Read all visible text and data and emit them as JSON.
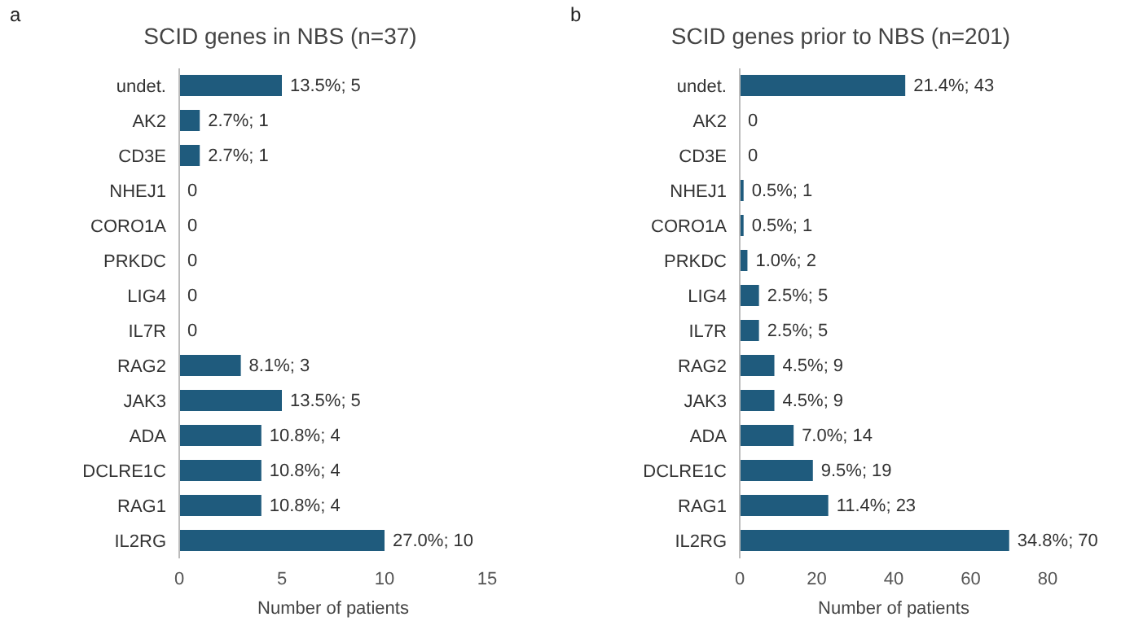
{
  "chart_data": [
    {
      "type": "bar",
      "orientation": "horizontal",
      "title": "SCID genes in NBS (n=37)",
      "annotations": [
        "a"
      ],
      "xlabel": "Number of patients",
      "categories": [
        "undet.",
        "AK2",
        "CD3E",
        "NHEJ1",
        "CORO1A",
        "PRKDC",
        "LIG4",
        "IL7R",
        "RAG2",
        "JAK3",
        "ADA",
        "DCLRE1C",
        "RAG1",
        "IL2RG"
      ],
      "values": [
        5,
        1,
        1,
        0,
        0,
        0,
        0,
        0,
        3,
        5,
        4,
        4,
        4,
        10
      ],
      "value_labels": [
        "13.5%; 5",
        "2.7%; 1",
        "2.7%; 1",
        "0",
        "0",
        "0",
        "0",
        "0",
        "8.1%; 3",
        "13.5%; 5",
        "10.8%; 4",
        "10.8%; 4",
        "10.8%; 4",
        "27.0%; 10"
      ],
      "color": "#1f5b7d",
      "xlim": [
        0,
        15
      ],
      "xticks": [
        0,
        5,
        10,
        15
      ]
    },
    {
      "type": "bar",
      "orientation": "horizontal",
      "title": "SCID genes prior to NBS (n=201)",
      "annotations": [
        "b"
      ],
      "xlabel": "Number of patients",
      "categories": [
        "undet.",
        "AK2",
        "CD3E",
        "NHEJ1",
        "CORO1A",
        "PRKDC",
        "LIG4",
        "IL7R",
        "RAG2",
        "JAK3",
        "ADA",
        "DCLRE1C",
        "RAG1",
        "IL2RG"
      ],
      "values": [
        43,
        0,
        0,
        1,
        1,
        2,
        5,
        5,
        9,
        9,
        14,
        19,
        23,
        70
      ],
      "value_labels": [
        "21.4%; 43",
        "0",
        "0",
        "0.5%; 1",
        "0.5%; 1",
        "1.0%; 2",
        "2.5%; 5",
        "2.5%; 5",
        "4.5%; 9",
        "4.5%; 9",
        "7.0%; 14",
        "9.5%; 19",
        "11.4%; 23",
        "34.8%; 70"
      ],
      "color": "#1f5b7d",
      "xlim": [
        0,
        80
      ],
      "xticks": [
        0,
        20,
        40,
        60,
        80
      ]
    }
  ]
}
